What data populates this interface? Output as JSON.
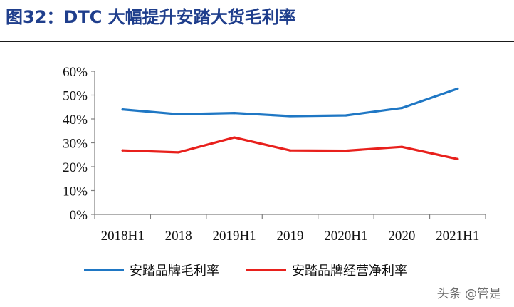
{
  "header": {
    "title": "图32：DTC 大幅提升安踏大货毛利率"
  },
  "watermark": "头条 @管是",
  "chart_data": {
    "type": "line",
    "categories": [
      "2018H1",
      "2018",
      "2019H1",
      "2019",
      "2020H1",
      "2020",
      "2021H1"
    ],
    "series": [
      {
        "name": "安踏品牌毛利率",
        "color": "#1f77c4",
        "values": [
          44.0,
          42.0,
          42.5,
          41.2,
          41.5,
          44.6,
          52.7
        ]
      },
      {
        "name": "安踏品牌经营净利率",
        "color": "#e8201c",
        "values": [
          26.8,
          26.0,
          32.2,
          26.8,
          26.7,
          28.3,
          23.2
        ]
      }
    ],
    "y_ticks": [
      "0%",
      "10%",
      "20%",
      "30%",
      "40%",
      "50%",
      "60%"
    ],
    "ylim": [
      0,
      60
    ],
    "grid": false,
    "legend_position": "bottom"
  }
}
